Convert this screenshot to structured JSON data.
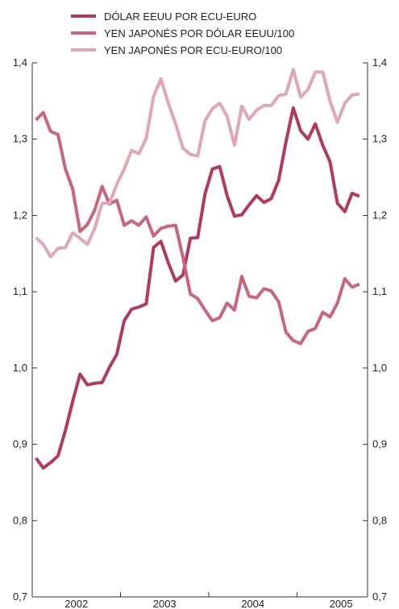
{
  "chart_data": {
    "type": "line",
    "title": "",
    "xlabel": "",
    "ylabel": "",
    "ylim": [
      0.7,
      1.4
    ],
    "y_ticks": [
      0.7,
      0.8,
      0.9,
      1.0,
      1.1,
      1.2,
      1.3,
      1.4
    ],
    "y_tick_labels": [
      "0,7",
      "0,8",
      "0,9",
      "1,0",
      "1,1",
      "1,2",
      "1,3",
      "1,4"
    ],
    "right_axis_mirror": true,
    "x_domain": [
      2001.5,
      2005.3
    ],
    "x_tick_labels": [
      {
        "x": 2002.0,
        "label": "2002"
      },
      {
        "x": 2003.0,
        "label": "2003"
      },
      {
        "x": 2004.0,
        "label": "2004"
      },
      {
        "x": 2005.0,
        "label": "2005"
      }
    ],
    "x_minor_ticks": [
      2001.5,
      2002.5,
      2003.5,
      2004.5,
      2005.3
    ],
    "grid": false,
    "legend_position": "top",
    "series": [
      {
        "name": "DÓLAR EEUU POR ECU-EURO",
        "color": "#b23a5c",
        "points": [
          [
            2001.542,
            0.882
          ],
          [
            2001.625,
            0.869
          ],
          [
            2001.708,
            0.876
          ],
          [
            2001.792,
            0.885
          ],
          [
            2001.875,
            0.918
          ],
          [
            2001.958,
            0.956
          ],
          [
            2002.042,
            0.992
          ],
          [
            2002.125,
            0.978
          ],
          [
            2002.208,
            0.98
          ],
          [
            2002.292,
            0.981
          ],
          [
            2002.375,
            1.001
          ],
          [
            2002.458,
            1.018
          ],
          [
            2002.542,
            1.062
          ],
          [
            2002.625,
            1.077
          ],
          [
            2002.708,
            1.08
          ],
          [
            2002.792,
            1.084
          ],
          [
            2002.875,
            1.158
          ],
          [
            2002.958,
            1.166
          ],
          [
            2003.042,
            1.138
          ],
          [
            2003.125,
            1.114
          ],
          [
            2003.208,
            1.122
          ],
          [
            2003.292,
            1.17
          ],
          [
            2003.375,
            1.171
          ],
          [
            2003.458,
            1.228
          ],
          [
            2003.542,
            1.261
          ],
          [
            2003.625,
            1.264
          ],
          [
            2003.708,
            1.226
          ],
          [
            2003.792,
            1.199
          ],
          [
            2003.875,
            1.201
          ],
          [
            2003.958,
            1.214
          ],
          [
            2004.042,
            1.226
          ],
          [
            2004.125,
            1.217
          ],
          [
            2004.208,
            1.222
          ],
          [
            2004.292,
            1.246
          ],
          [
            2004.375,
            1.296
          ],
          [
            2004.458,
            1.341
          ],
          [
            2004.542,
            1.311
          ],
          [
            2004.625,
            1.3
          ],
          [
            2004.708,
            1.32
          ],
          [
            2004.792,
            1.292
          ],
          [
            2004.875,
            1.27
          ],
          [
            2004.958,
            1.216
          ],
          [
            2005.042,
            1.205
          ],
          [
            2005.125,
            1.229
          ],
          [
            2005.208,
            1.225
          ]
        ]
      },
      {
        "name": "YEN JAPONÉS POR DÓLAR EEUU/100",
        "color": "#c9667e",
        "points": [
          [
            2001.542,
            1.325
          ],
          [
            2001.625,
            1.335
          ],
          [
            2001.708,
            1.31
          ],
          [
            2001.792,
            1.306
          ],
          [
            2001.875,
            1.261
          ],
          [
            2001.958,
            1.235
          ],
          [
            2002.042,
            1.179
          ],
          [
            2002.125,
            1.188
          ],
          [
            2002.208,
            1.207
          ],
          [
            2002.292,
            1.238
          ],
          [
            2002.375,
            1.215
          ],
          [
            2002.458,
            1.22
          ],
          [
            2002.542,
            1.187
          ],
          [
            2002.625,
            1.193
          ],
          [
            2002.708,
            1.187
          ],
          [
            2002.792,
            1.198
          ],
          [
            2002.875,
            1.173
          ],
          [
            2002.958,
            1.183
          ],
          [
            2003.042,
            1.186
          ],
          [
            2003.125,
            1.187
          ],
          [
            2003.208,
            1.145
          ],
          [
            2003.292,
            1.097
          ],
          [
            2003.375,
            1.091
          ],
          [
            2003.458,
            1.076
          ],
          [
            2003.542,
            1.062
          ],
          [
            2003.625,
            1.066
          ],
          [
            2003.708,
            1.085
          ],
          [
            2003.792,
            1.076
          ],
          [
            2003.875,
            1.12
          ],
          [
            2003.958,
            1.094
          ],
          [
            2004.042,
            1.092
          ],
          [
            2004.125,
            1.104
          ],
          [
            2004.208,
            1.101
          ],
          [
            2004.292,
            1.087
          ],
          [
            2004.375,
            1.047
          ],
          [
            2004.458,
            1.036
          ],
          [
            2004.542,
            1.032
          ],
          [
            2004.625,
            1.048
          ],
          [
            2004.708,
            1.052
          ],
          [
            2004.792,
            1.073
          ],
          [
            2004.875,
            1.067
          ],
          [
            2004.958,
            1.085
          ],
          [
            2005.042,
            1.117
          ],
          [
            2005.125,
            1.106
          ],
          [
            2005.208,
            1.11
          ]
        ]
      },
      {
        "name": "YEN JAPONÉS POR ECU-EURO/100",
        "color": "#e0a7b5",
        "points": [
          [
            2001.542,
            1.171
          ],
          [
            2001.625,
            1.162
          ],
          [
            2001.708,
            1.146
          ],
          [
            2001.792,
            1.157
          ],
          [
            2001.875,
            1.158
          ],
          [
            2001.958,
            1.177
          ],
          [
            2002.042,
            1.17
          ],
          [
            2002.125,
            1.162
          ],
          [
            2002.208,
            1.183
          ],
          [
            2002.292,
            1.216
          ],
          [
            2002.375,
            1.216
          ],
          [
            2002.458,
            1.241
          ],
          [
            2002.542,
            1.261
          ],
          [
            2002.625,
            1.285
          ],
          [
            2002.708,
            1.281
          ],
          [
            2002.792,
            1.301
          ],
          [
            2002.875,
            1.356
          ],
          [
            2002.958,
            1.379
          ],
          [
            2003.042,
            1.347
          ],
          [
            2003.125,
            1.32
          ],
          [
            2003.208,
            1.288
          ],
          [
            2003.292,
            1.28
          ],
          [
            2003.375,
            1.278
          ],
          [
            2003.458,
            1.324
          ],
          [
            2003.542,
            1.34
          ],
          [
            2003.625,
            1.347
          ],
          [
            2003.708,
            1.33
          ],
          [
            2003.792,
            1.292
          ],
          [
            2003.875,
            1.343
          ],
          [
            2003.958,
            1.326
          ],
          [
            2004.042,
            1.338
          ],
          [
            2004.125,
            1.344
          ],
          [
            2004.208,
            1.344
          ],
          [
            2004.292,
            1.357
          ],
          [
            2004.375,
            1.359
          ],
          [
            2004.458,
            1.391
          ],
          [
            2004.542,
            1.355
          ],
          [
            2004.625,
            1.365
          ],
          [
            2004.708,
            1.388
          ],
          [
            2004.792,
            1.388
          ],
          [
            2004.875,
            1.35
          ],
          [
            2004.958,
            1.322
          ],
          [
            2005.042,
            1.347
          ],
          [
            2005.125,
            1.358
          ],
          [
            2005.208,
            1.359
          ]
        ]
      }
    ]
  }
}
